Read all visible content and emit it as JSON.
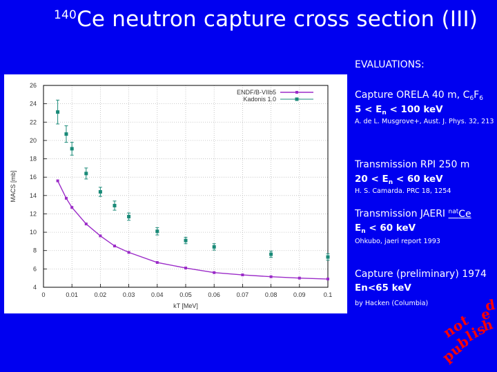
{
  "title": {
    "superscript": "140",
    "text": "Ce neutron capture cross section (III)"
  },
  "colors": {
    "background": "#0000f0",
    "stamp": "#ff0000",
    "endf_line": "#9b2bc8",
    "kadonis_points": "#1a8a78"
  },
  "evaluations": {
    "heading": "EVALUATIONS:",
    "items": [
      {
        "line1": "Capture ORELA 40 m, C",
        "line1_sub1": "6",
        "line1_mid": "F",
        "line1_sub2": "6",
        "line2_pre": "5 < E",
        "line2_sub": "n",
        "line2_post": " < 100 keV",
        "ref": "A. de L. Musgrove+, Aust. J. Phys. 32, 213"
      },
      {
        "line1": "Transmission RPI 250 m",
        "line2_pre": "20 < E",
        "line2_sub": "n",
        "line2_post": " < 60 keV",
        "ref": "H. S. Camarda. PRC 18, 1254"
      },
      {
        "line1": "Transmission JAERI ",
        "line1_sup": "nat",
        "line1_post": "Ce",
        "line2_pre": "E",
        "line2_sub": "n",
        "line2_post": " < 60 keV",
        "ref": "Ohkubo, jaeri report 1993"
      },
      {
        "line1": "Capture (preliminary) 1974",
        "line2": "En<65 keV",
        "ref": "by Hacken (Columbia)"
      }
    ],
    "stamp": [
      "n",
      "o",
      "t",
      "p",
      "u",
      "b",
      "l",
      "i",
      "s",
      "h",
      "e",
      "d"
    ]
  },
  "chart_data": {
    "type": "line",
    "title": "",
    "xlabel": "kT [MeV]",
    "ylabel": "MACS [mb]",
    "xlim": [
      0,
      0.1
    ],
    "ylim": [
      4,
      26
    ],
    "x_ticks": [
      "0",
      "0.01",
      "0.02",
      "0.03",
      "0.04",
      "0.05",
      "0.06",
      "0.07",
      "0.08",
      "0.09",
      "0.1"
    ],
    "y_ticks": [
      "4",
      "6",
      "8",
      "10",
      "12",
      "14",
      "16",
      "18",
      "20",
      "22",
      "24",
      "26"
    ],
    "legend_position": "top-right",
    "series": [
      {
        "name": "ENDF/B-VIIb5",
        "style": "line+points",
        "x": [
          0.005,
          0.008,
          0.01,
          0.015,
          0.02,
          0.025,
          0.03,
          0.04,
          0.05,
          0.06,
          0.07,
          0.08,
          0.09,
          0.1
        ],
        "y": [
          15.6,
          13.7,
          12.7,
          10.9,
          9.6,
          8.5,
          7.8,
          6.7,
          6.1,
          5.6,
          5.35,
          5.15,
          5.0,
          4.9
        ]
      },
      {
        "name": "Kadonis 1.0",
        "style": "points+errorbars",
        "x": [
          0.005,
          0.008,
          0.01,
          0.015,
          0.02,
          0.025,
          0.03,
          0.04,
          0.05,
          0.06,
          0.08,
          0.1
        ],
        "y": [
          23.1,
          20.7,
          19.1,
          16.4,
          14.4,
          12.9,
          11.7,
          10.1,
          9.1,
          8.4,
          7.6,
          7.3
        ],
        "err": [
          1.3,
          0.9,
          0.7,
          0.6,
          0.5,
          0.5,
          0.4,
          0.4,
          0.35,
          0.35,
          0.35,
          0.35
        ]
      }
    ]
  }
}
